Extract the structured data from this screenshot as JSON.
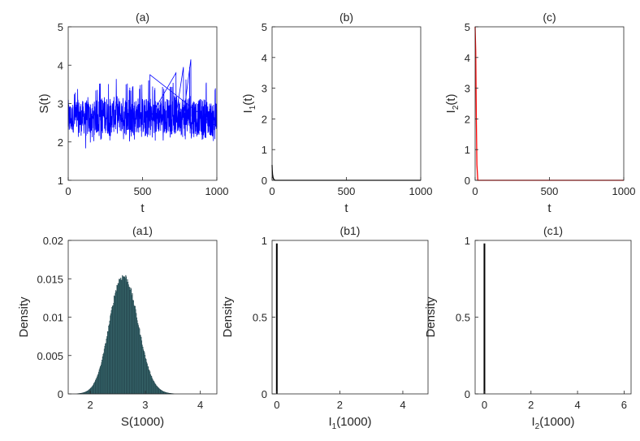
{
  "chart_data": [
    {
      "id": "a",
      "type": "line",
      "title": "(a)",
      "xlabel": "t",
      "ylabel": "S(t)",
      "xlim": [
        0,
        1000
      ],
      "ylim": [
        1,
        5
      ],
      "xticks": [
        "0",
        "500",
        "1000"
      ],
      "yticks": [
        "1",
        "2",
        "3",
        "4",
        "5"
      ],
      "color": "#0000ff",
      "series": [
        {
          "x": [
            0,
            25,
            50,
            75,
            100,
            125,
            150,
            175,
            200,
            225,
            250,
            275,
            300,
            325,
            350,
            375,
            400,
            425,
            450,
            475,
            500,
            525,
            550,
            575,
            600,
            625,
            650,
            675,
            700,
            725,
            750,
            775,
            800,
            825,
            850,
            875,
            900,
            925,
            950,
            975,
            1000
          ],
          "mean": [
            2.6,
            2.62,
            2.65,
            2.6,
            2.65,
            2.6,
            2.63,
            2.62,
            2.66,
            2.68,
            2.72,
            2.65,
            2.7,
            2.72,
            2.68,
            2.7,
            2.66,
            2.66,
            2.68,
            2.7,
            2.68,
            2.66,
            2.64,
            2.62,
            2.66,
            2.7,
            2.68,
            2.7,
            2.72,
            2.7,
            2.68,
            2.68,
            2.7,
            2.66,
            2.65,
            2.64,
            2.65,
            2.62,
            2.6,
            2.6,
            2.6
          ],
          "min": [
            1.7,
            2.05,
            2.0,
            1.85,
            1.95,
            1.7,
            1.95,
            2.0,
            2.05,
            2.05,
            2.1,
            2.0,
            2.1,
            2.05,
            2.05,
            2.05,
            1.85,
            2.1,
            2.05,
            2.0,
            2.0,
            2.05,
            2.0,
            1.95,
            2.1,
            2.0,
            2.05,
            2.15,
            2.05,
            2.0,
            2.1,
            2.05,
            2.0,
            2.1,
            2.0,
            2.05,
            1.95,
            2.0,
            2.05,
            2.0,
            2.0
          ],
          "max": [
            3.3,
            3.2,
            3.4,
            3.45,
            3.3,
            3.25,
            3.3,
            3.4,
            3.5,
            3.6,
            3.65,
            3.55,
            3.5,
            3.7,
            3.45,
            3.6,
            3.55,
            3.4,
            3.55,
            3.5,
            3.5,
            3.55,
            3.75,
            3.5,
            3.45,
            3.55,
            3.45,
            3.6,
            3.5,
            3.8,
            3.5,
            3.95,
            3.55,
            4.15,
            3.6,
            3.5,
            3.5,
            3.65,
            3.45,
            3.5,
            3.4
          ]
        }
      ]
    },
    {
      "id": "b",
      "type": "line",
      "title": "(b)",
      "xlabel": "t",
      "ylabel": "I",
      "ylabel_sub": "1",
      "ylabel_suffix": "(t)",
      "xlim": [
        0,
        1000
      ],
      "ylim": [
        0,
        5
      ],
      "xticks": [
        "0",
        "500",
        "1000"
      ],
      "yticks": [
        "0",
        "1",
        "2",
        "3",
        "4",
        "5"
      ],
      "color": "#000000",
      "series": [
        {
          "x": [
            0,
            1,
            3,
            6,
            10,
            20,
            1000
          ],
          "y": [
            0.5,
            0.35,
            0.2,
            0.1,
            0.04,
            0.0,
            0.0
          ]
        }
      ]
    },
    {
      "id": "c",
      "type": "line",
      "title": "(c)",
      "xlabel": "t",
      "ylabel": "I",
      "ylabel_sub": "2",
      "ylabel_suffix": "(t)",
      "xlim": [
        0,
        1000
      ],
      "ylim": [
        0,
        5
      ],
      "xticks": [
        "0",
        "500",
        "1000"
      ],
      "yticks": [
        "0",
        "1",
        "2",
        "3",
        "4",
        "5"
      ],
      "color": "#ff0000",
      "series": [
        {
          "x": [
            0,
            4,
            8,
            12,
            18,
            1000
          ],
          "y": [
            5.0,
            4.2,
            2.0,
            0.5,
            0.0,
            0.0
          ]
        }
      ]
    },
    {
      "id": "a1",
      "type": "bar",
      "title": "(a1)",
      "xlabel": "S(1000)",
      "ylabel": "Density",
      "xlim": [
        1.6,
        4.3
      ],
      "ylim": [
        0,
        0.02
      ],
      "xticks": [
        "2",
        "3",
        "4"
      ],
      "yticks": [
        "0",
        "0.005",
        "0.01",
        "0.015",
        "0.02"
      ],
      "color": "#5f9ea0",
      "density": {
        "mean": 2.58,
        "sd": 0.26,
        "skew": 0.22,
        "peak": 0.0152,
        "bin_width": 0.01,
        "range": [
          1.7,
          4.0
        ]
      }
    },
    {
      "id": "b1",
      "type": "bar",
      "title": "(b1)",
      "xlabel": "I",
      "xlabel_sub": "1",
      "xlabel_suffix": "(1000)",
      "ylabel": "Density",
      "xlim": [
        -0.15,
        4.8
      ],
      "ylim": [
        0,
        1
      ],
      "xticks": [
        "0",
        "2",
        "4"
      ],
      "yticks": [
        "0",
        "0.5",
        "1"
      ],
      "color": "#000000",
      "bars": [
        {
          "x": 0.0,
          "y": 0.98
        }
      ]
    },
    {
      "id": "c1",
      "type": "bar",
      "title": "(c1)",
      "xlabel": "I",
      "xlabel_sub": "2",
      "xlabel_suffix": "(1000)",
      "ylabel": "Density",
      "xlim": [
        -0.4,
        6.3
      ],
      "ylim": [
        0,
        1
      ],
      "xticks": [
        "0",
        "2",
        "4",
        "6"
      ],
      "yticks": [
        "0",
        "0.5",
        "1"
      ],
      "color": "#000000",
      "bars": [
        {
          "x": 0.0,
          "y": 0.98
        }
      ]
    }
  ]
}
